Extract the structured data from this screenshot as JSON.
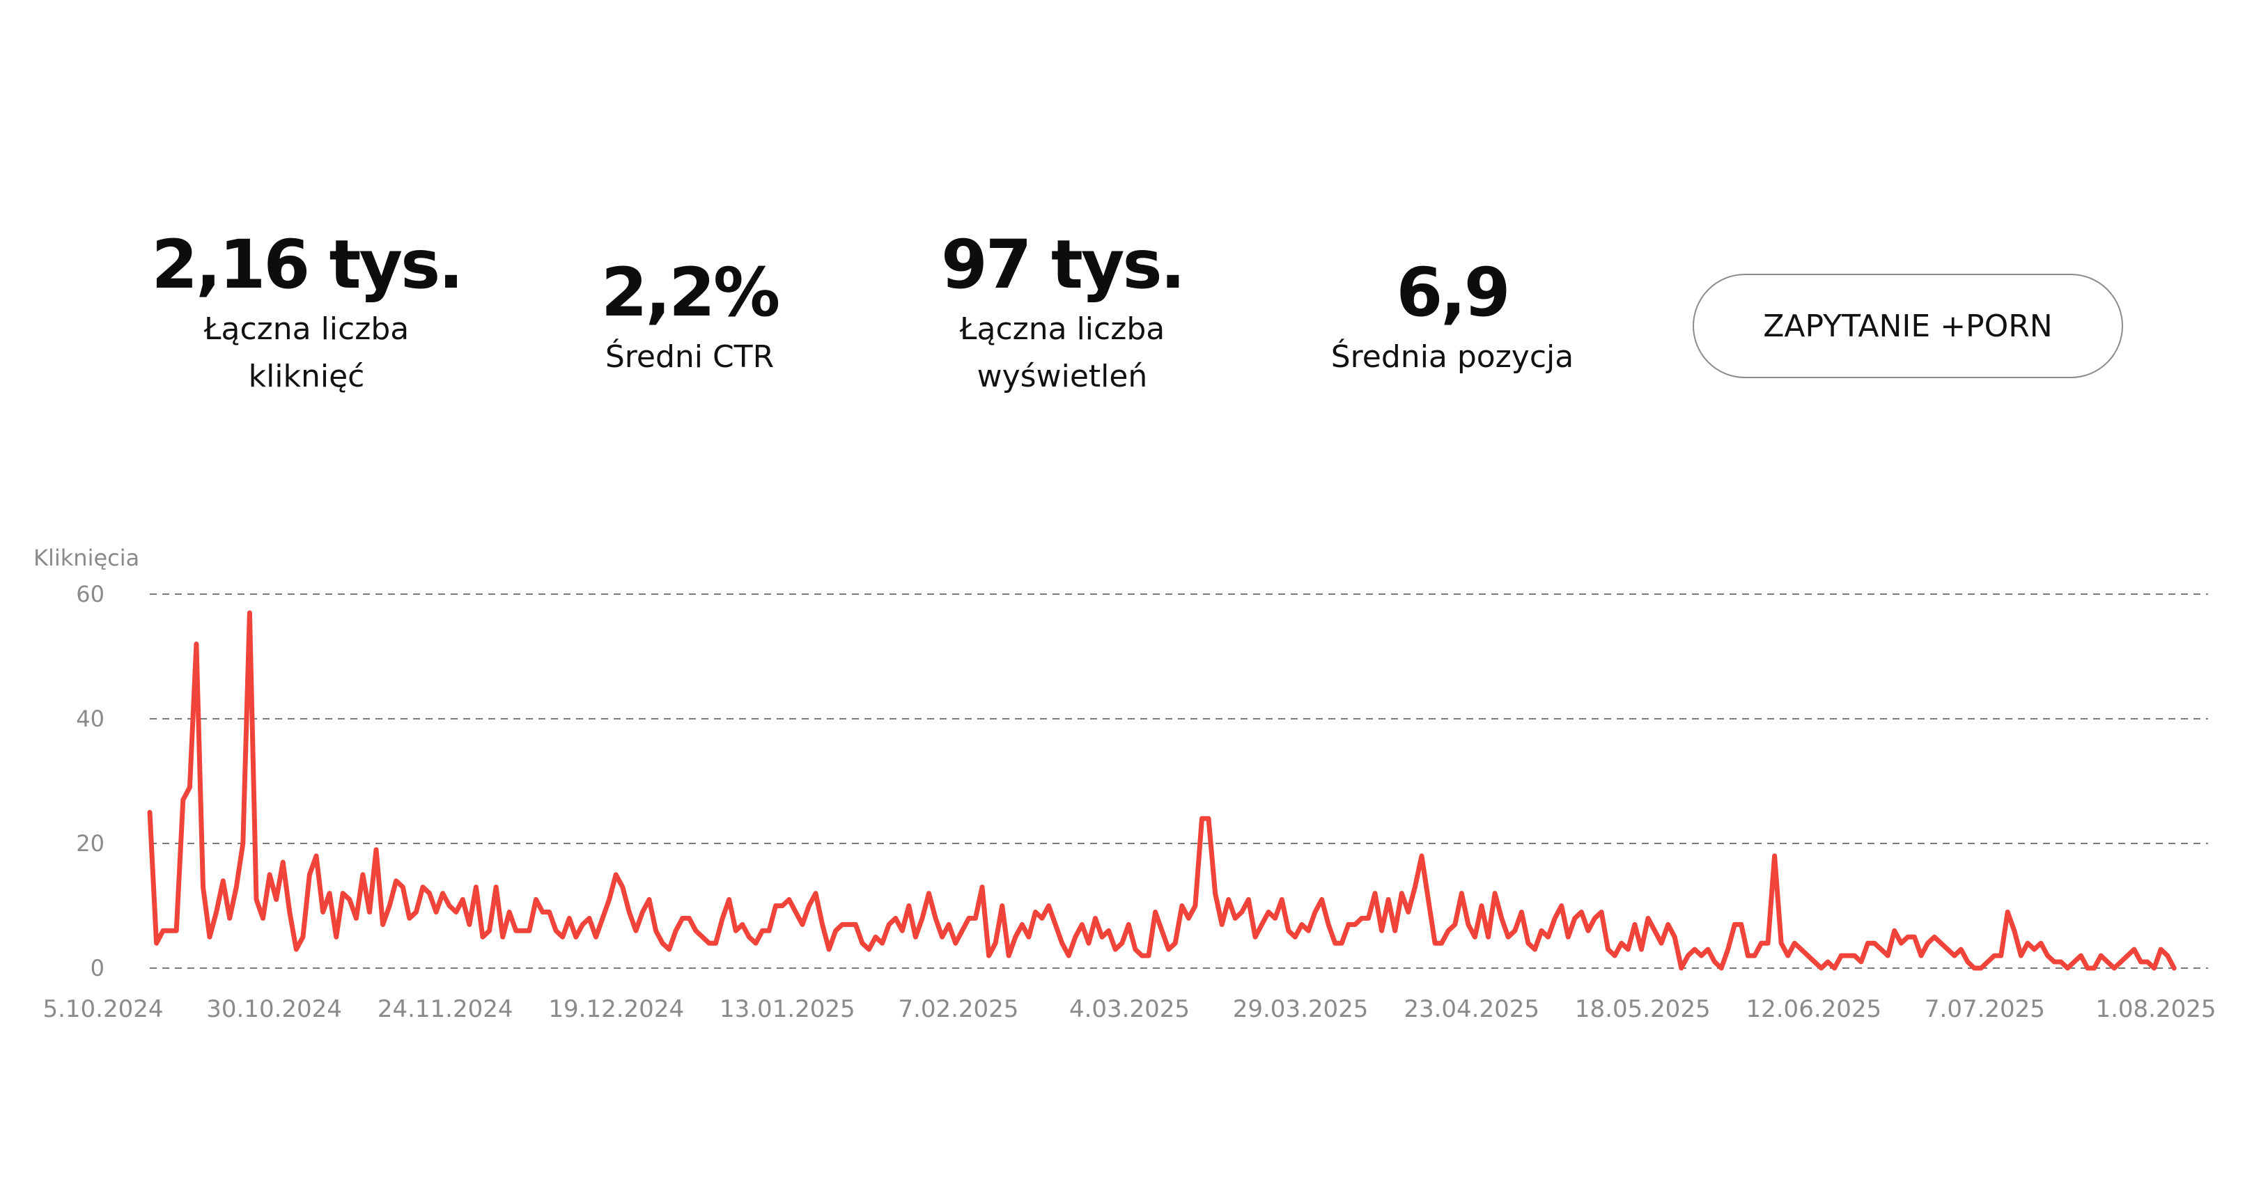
{
  "metrics": {
    "clicks": {
      "value": "2,16 tys.",
      "label_line1": "Łączna liczba",
      "label_line2": "kliknięć"
    },
    "ctr": {
      "value": "2,2%",
      "label": "Średni CTR"
    },
    "impressions": {
      "value": "97 tys.",
      "label_line1": "Łączna liczba",
      "label_line2": "wyświetleń"
    },
    "position": {
      "value": "6,9",
      "label": "Średnia pozycja"
    }
  },
  "query_button": {
    "label": "ZAPYTANIE +PORN"
  },
  "colors": {
    "line": "#f0433a",
    "grid": "#7a7a7a",
    "axis_text": "#8a8a8a"
  },
  "chart_data": {
    "type": "line",
    "ylabel": "Kliknięcia",
    "ylim": [
      0,
      60
    ],
    "yticks": [
      0,
      20,
      40,
      60
    ],
    "xlim": [
      "2024-10-05",
      "2025-08-01"
    ],
    "xtick_labels": [
      "5.10.2024",
      "30.10.2024",
      "24.11.2024",
      "19.12.2024",
      "13.01.2025",
      "7.02.2025",
      "4.03.2025",
      "29.03.2025",
      "23.04.2025",
      "18.05.2025",
      "12.06.2025",
      "7.07.2025",
      "1.08.2025"
    ],
    "grid": true,
    "legend": "none",
    "series": [
      {
        "x_start": "2024-10-05",
        "x_step_days": 1,
        "values": [
          25,
          4,
          6,
          6,
          6,
          27,
          29,
          52,
          13,
          5,
          9,
          14,
          8,
          13,
          20,
          57,
          11,
          8,
          15,
          11,
          17,
          9,
          3,
          5,
          15,
          18,
          9,
          12,
          5,
          12,
          11,
          8,
          15,
          9,
          19,
          7,
          10,
          14,
          13,
          8,
          9,
          13,
          12,
          9,
          12,
          10,
          9,
          11,
          7,
          13,
          5,
          6,
          13,
          5,
          9,
          6,
          6,
          6,
          11,
          9,
          9,
          6,
          5,
          8,
          5,
          7,
          8,
          5,
          8,
          11,
          15,
          13,
          9,
          6,
          9,
          11,
          6,
          4,
          3,
          6,
          8,
          8,
          6,
          5,
          4,
          4,
          8,
          11,
          6,
          7,
          5,
          4,
          6,
          6,
          10,
          10,
          11,
          9,
          7,
          10,
          12,
          7,
          3,
          6,
          7,
          7,
          7,
          4,
          3,
          5,
          4,
          7,
          8,
          6,
          10,
          5,
          8,
          12,
          8,
          5,
          7,
          4,
          6,
          8,
          8,
          13,
          2,
          4,
          10,
          2,
          5,
          7,
          5,
          9,
          8,
          10,
          7,
          4,
          2,
          5,
          7,
          4,
          8,
          5,
          6,
          3,
          4,
          7,
          3,
          2,
          2,
          9,
          6,
          3,
          4,
          10,
          8,
          10,
          24,
          24,
          12,
          7,
          11,
          8,
          9,
          11,
          5,
          7,
          9,
          8,
          11,
          6,
          5,
          7,
          6,
          9,
          11,
          7,
          4,
          4,
          7,
          7,
          8,
          8,
          12,
          6,
          11,
          6,
          12,
          9,
          13,
          18,
          11,
          4,
          4,
          6,
          7,
          12,
          7,
          5,
          10,
          5,
          12,
          8,
          5,
          6,
          9,
          4,
          3,
          6,
          5,
          8,
          10,
          5,
          8,
          9,
          6,
          8,
          9,
          3,
          2,
          4,
          3,
          7,
          3,
          8,
          6,
          4,
          7,
          5,
          0,
          2,
          3,
          2,
          3,
          1,
          0,
          3,
          7,
          7,
          2,
          2,
          4,
          4,
          18,
          4,
          2,
          4,
          3,
          2,
          1,
          0,
          1,
          0,
          2,
          2,
          2,
          1,
          4,
          4,
          3,
          2,
          6,
          4,
          5,
          5,
          2,
          4,
          5,
          4,
          3,
          2,
          3,
          1,
          0,
          0,
          1,
          2,
          2,
          9,
          6,
          2,
          4,
          3,
          4,
          2,
          1,
          1,
          0,
          1,
          2,
          0,
          0,
          2,
          1,
          0,
          1,
          2,
          3,
          1,
          1,
          0,
          3,
          2,
          0
        ]
      }
    ]
  }
}
